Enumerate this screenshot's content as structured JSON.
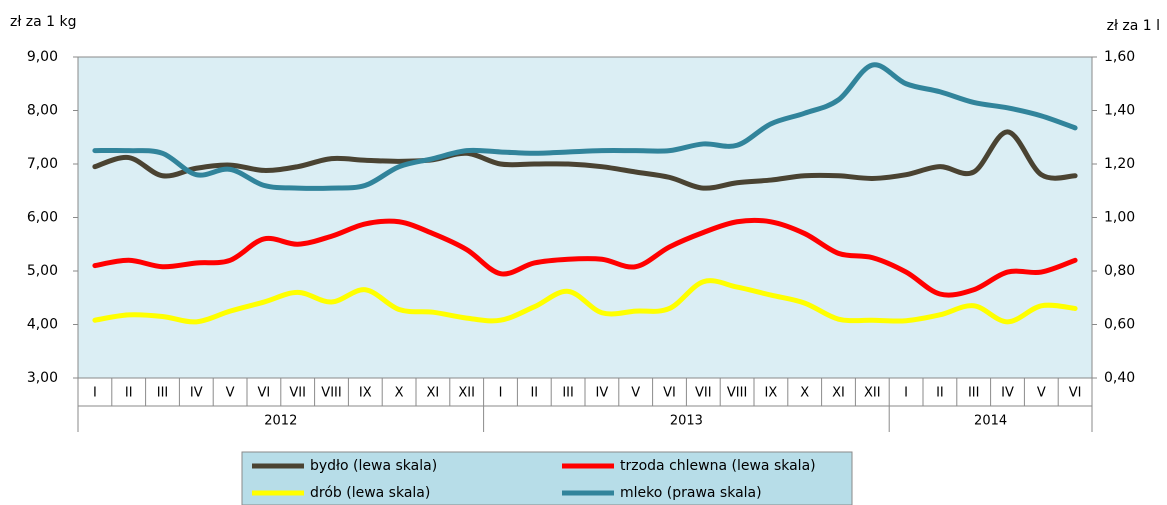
{
  "chart_data": {
    "type": "line",
    "y_axis_label": "zł za 1 kg",
    "y2_axis_label": "zł za 1 l",
    "groups": [
      {
        "label": "2012",
        "categories": [
          "I",
          "II",
          "III",
          "IV",
          "V",
          "VI",
          "VII",
          "VIII",
          "IX",
          "X",
          "XI",
          "XII"
        ]
      },
      {
        "label": "2013",
        "categories": [
          "I",
          "II",
          "III",
          "IV",
          "V",
          "VI",
          "VII",
          "VIII",
          "IX",
          "X",
          "XI",
          "XII"
        ]
      },
      {
        "label": "2014",
        "categories": [
          "I",
          "II",
          "III",
          "IV",
          "V",
          "VI"
        ]
      }
    ],
    "ylim": [
      3,
      9
    ],
    "yticks": [
      {
        "value": 3,
        "label": "3,00"
      },
      {
        "value": 4,
        "label": "4,00"
      },
      {
        "value": 5,
        "label": "5,00"
      },
      {
        "value": 6,
        "label": "6,00"
      },
      {
        "value": 7,
        "label": "7,00"
      },
      {
        "value": 8,
        "label": "8,00"
      },
      {
        "value": 9,
        "label": "9,00"
      }
    ],
    "y2lim": [
      0.4,
      1.6
    ],
    "y2ticks": [
      {
        "value": 0.4,
        "label": "0,40"
      },
      {
        "value": 0.6,
        "label": "0,60"
      },
      {
        "value": 0.8,
        "label": "0,80"
      },
      {
        "value": 1.0,
        "label": "1,00"
      },
      {
        "value": 1.2,
        "label": "1,20"
      },
      {
        "value": 1.4,
        "label": "1,40"
      },
      {
        "value": 1.6,
        "label": "1,60"
      }
    ],
    "series": [
      {
        "name": "bydło (lewa skala)",
        "color": "#4a4332",
        "values": [
          6.95,
          7.12,
          6.78,
          6.92,
          6.98,
          6.88,
          6.95,
          7.1,
          7.07,
          7.05,
          7.08,
          7.2,
          7.0,
          7.0,
          7.0,
          6.95,
          6.85,
          6.75,
          6.55,
          6.65,
          6.7,
          6.78,
          6.78,
          6.73,
          6.8,
          6.95,
          6.85,
          7.6,
          6.8,
          6.78
        ]
      },
      {
        "name": "trzoda chlewna (lewa skala)",
        "color": "#ff0000",
        "values": [
          5.1,
          5.2,
          5.08,
          5.15,
          5.2,
          5.6,
          5.5,
          5.65,
          5.88,
          5.92,
          5.7,
          5.4,
          4.95,
          5.15,
          5.22,
          5.22,
          5.08,
          5.45,
          5.72,
          5.92,
          5.92,
          5.7,
          5.33,
          5.25,
          4.98,
          4.57,
          4.65,
          4.98,
          4.98,
          5.2
        ]
      },
      {
        "name": "drób (lewa skala)",
        "color": "#ffff00",
        "values": [
          4.08,
          4.18,
          4.15,
          4.05,
          4.25,
          4.42,
          4.6,
          4.42,
          4.65,
          4.28,
          4.23,
          4.12,
          4.08,
          4.33,
          4.62,
          4.22,
          4.25,
          4.3,
          4.8,
          4.7,
          4.55,
          4.4,
          4.1,
          4.08,
          4.07,
          4.18,
          4.35,
          4.05,
          4.35,
          4.3
        ]
      },
      {
        "name": "mleko (prawa skala)",
        "color": "#31849b",
        "axis": "y2",
        "values": [
          1.25,
          1.25,
          1.24,
          1.16,
          1.18,
          1.12,
          1.11,
          1.11,
          1.12,
          1.19,
          1.22,
          1.25,
          1.245,
          1.24,
          1.245,
          1.25,
          1.25,
          1.25,
          1.275,
          1.27,
          1.35,
          1.39,
          1.44,
          1.57,
          1.5,
          1.47,
          1.43,
          1.41,
          1.38,
          1.335
        ]
      }
    ]
  }
}
